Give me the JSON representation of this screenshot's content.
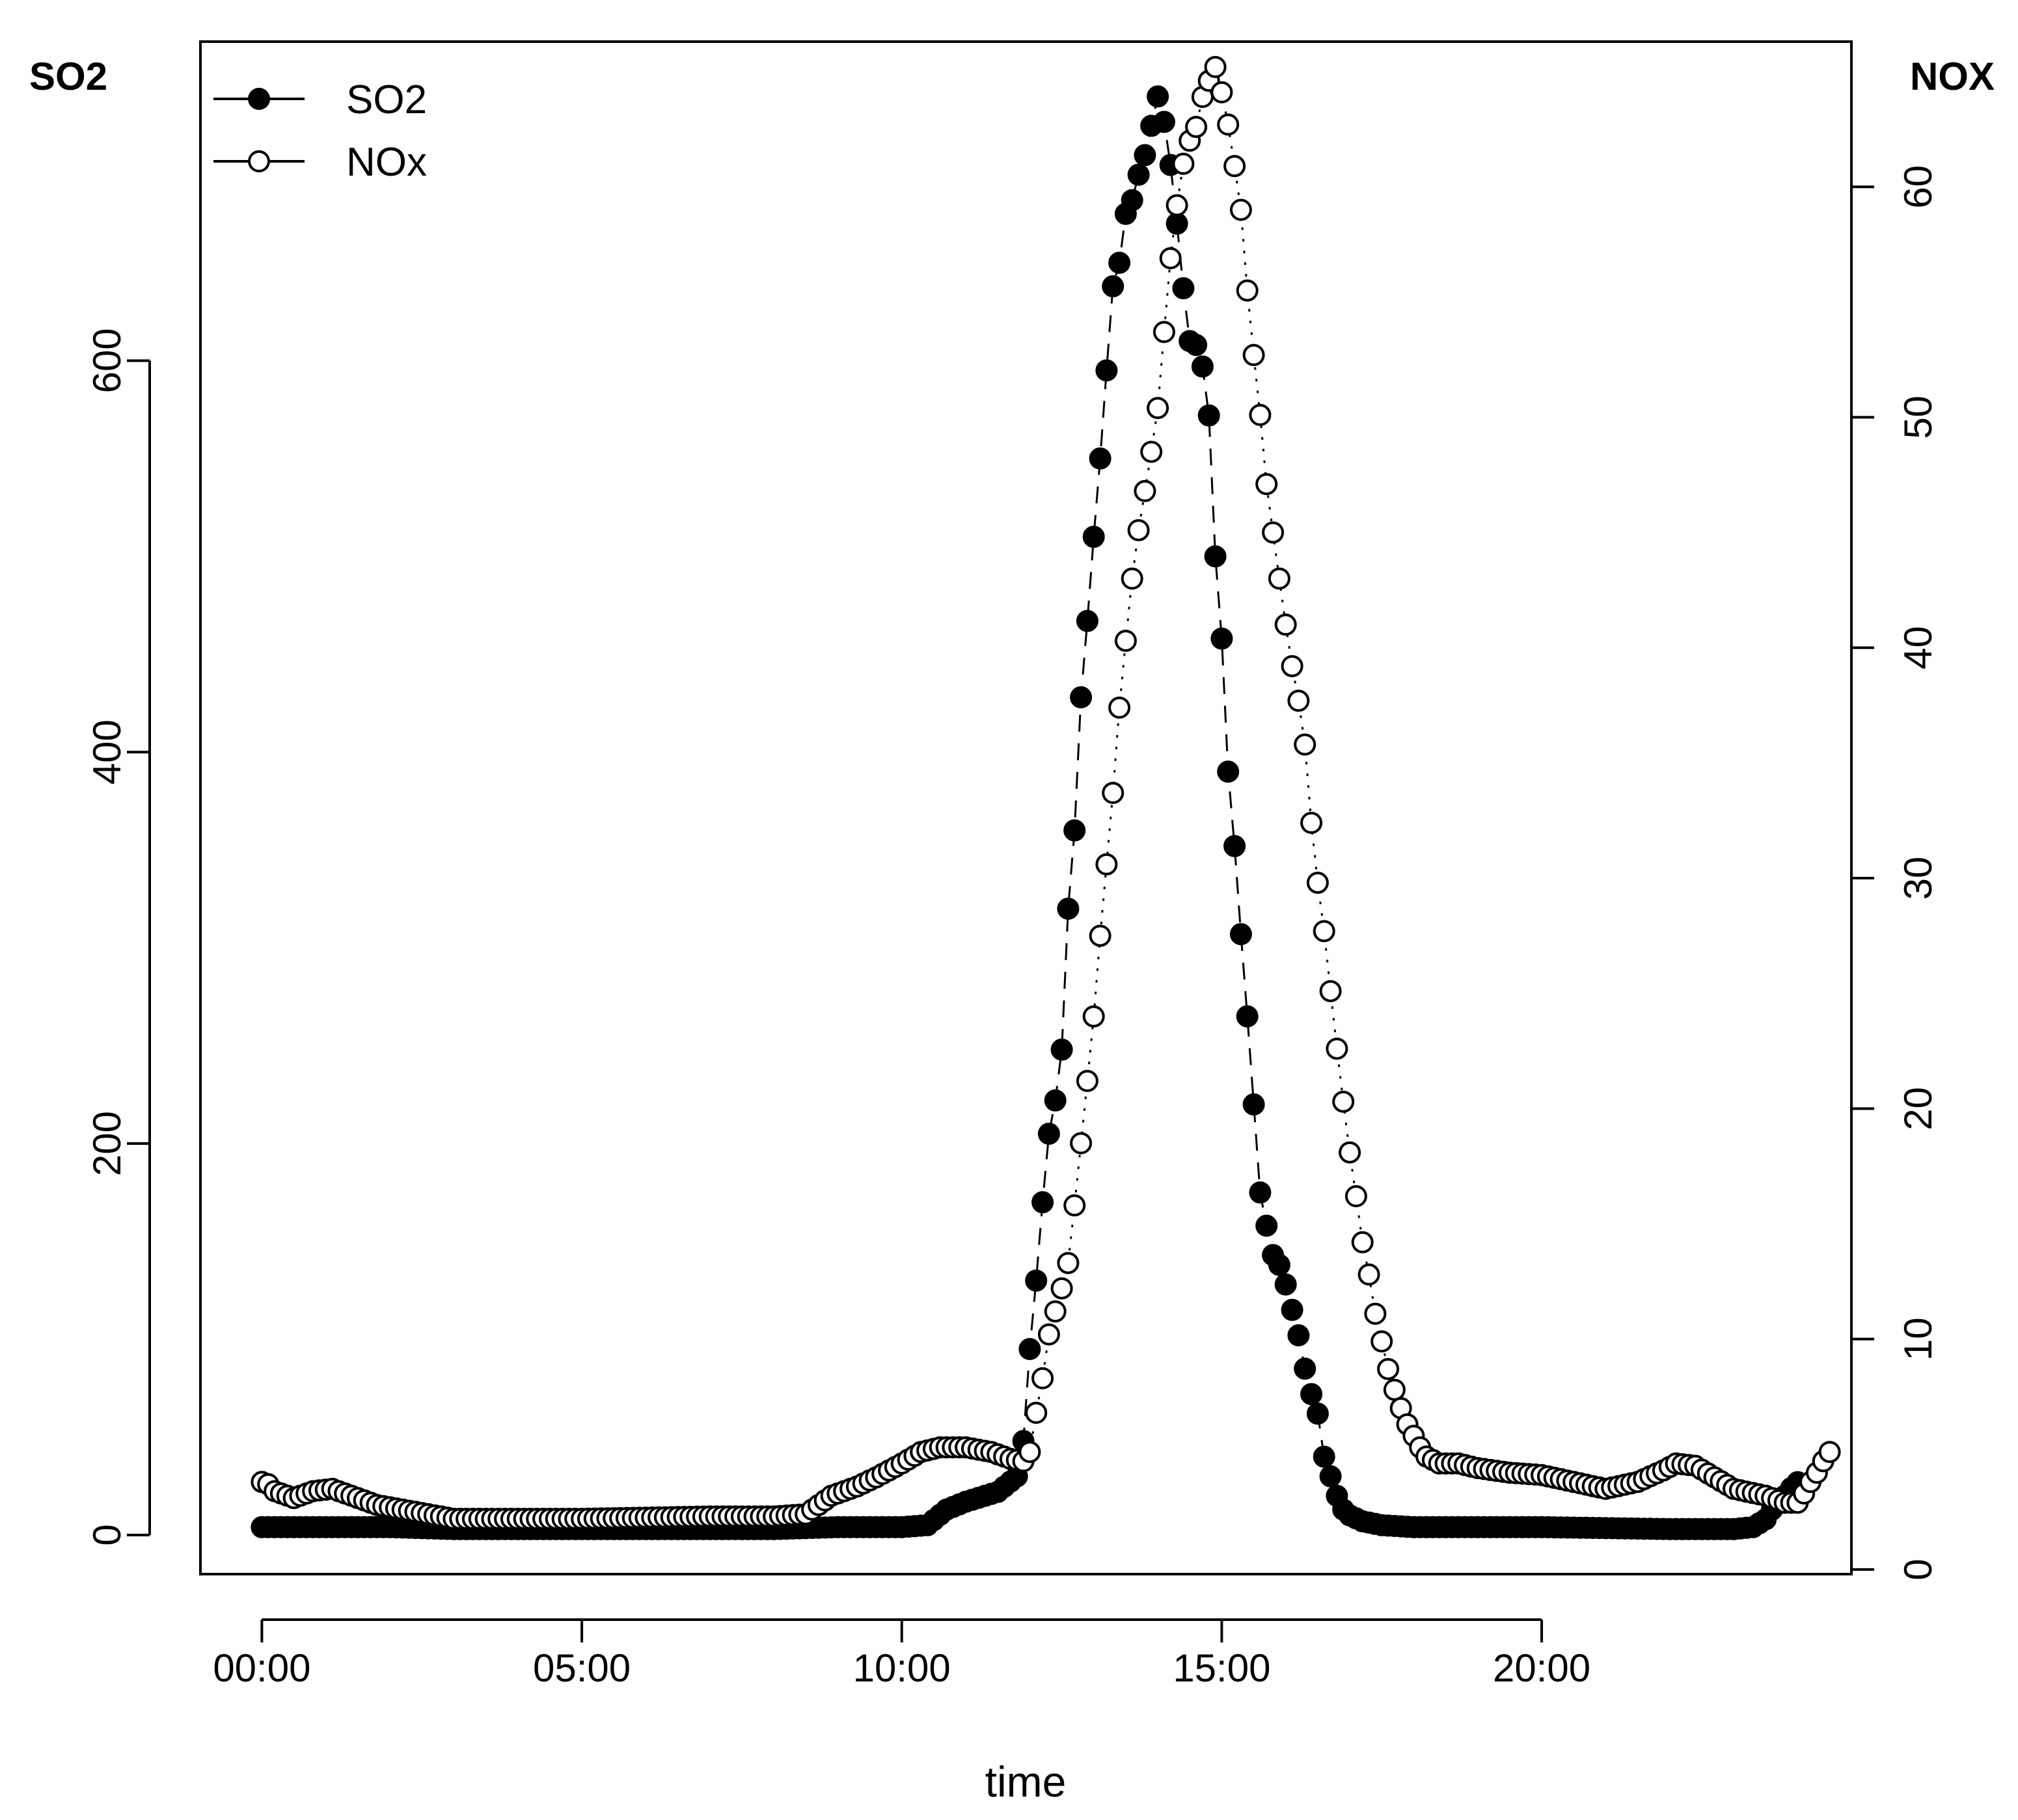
{
  "chart_data": {
    "type": "line",
    "xlabel": "time",
    "ylabel_left": "SO2",
    "ylabel_right": "NOX",
    "x_ticks": [
      "00:00",
      "05:00",
      "10:00",
      "15:00",
      "20:00"
    ],
    "x_tick_hours": [
      0,
      5,
      10,
      15,
      20
    ],
    "xlim_hours": [
      -0.96,
      24.84
    ],
    "ylim_left": [
      -20,
      763
    ],
    "yticks_left": [
      0,
      200,
      400,
      600
    ],
    "ylim_right": [
      -0.2,
      66.3
    ],
    "yticks_right": [
      0,
      10,
      20,
      30,
      40,
      50,
      60
    ],
    "legend": {
      "position": "top-left",
      "entries": [
        "SO2",
        "NOx"
      ]
    },
    "grid": false,
    "marker_interval_hours": 0.1,
    "series": [
      {
        "name": "SO2",
        "axis": "left",
        "marker": "filled-circle",
        "line": "dashed",
        "points": [
          [
            0,
            4
          ],
          [
            1,
            4
          ],
          [
            2,
            4
          ],
          [
            3,
            3
          ],
          [
            4,
            3
          ],
          [
            5,
            3
          ],
          [
            6,
            3
          ],
          [
            7,
            3
          ],
          [
            8,
            3
          ],
          [
            9,
            4
          ],
          [
            10,
            4
          ],
          [
            10.4,
            5
          ],
          [
            10.7,
            13
          ],
          [
            11,
            17
          ],
          [
            11.5,
            22
          ],
          [
            11.8,
            30
          ],
          [
            11.9,
            48
          ],
          [
            12,
            95
          ],
          [
            12.1,
            130
          ],
          [
            12.2,
            170
          ],
          [
            12.3,
            205
          ],
          [
            12.4,
            222
          ],
          [
            12.5,
            248
          ],
          [
            12.6,
            320
          ],
          [
            12.7,
            360
          ],
          [
            12.8,
            428
          ],
          [
            12.9,
            467
          ],
          [
            13,
            510
          ],
          [
            13.1,
            550
          ],
          [
            13.2,
            595
          ],
          [
            13.3,
            638
          ],
          [
            13.4,
            650
          ],
          [
            13.5,
            675
          ],
          [
            13.6,
            682
          ],
          [
            13.7,
            695
          ],
          [
            13.8,
            705
          ],
          [
            13.9,
            720
          ],
          [
            14,
            735
          ],
          [
            14.1,
            722
          ],
          [
            14.2,
            700
          ],
          [
            14.3,
            670
          ],
          [
            14.4,
            637
          ],
          [
            14.5,
            610
          ],
          [
            14.6,
            608
          ],
          [
            14.7,
            597
          ],
          [
            14.8,
            572
          ],
          [
            14.9,
            500
          ],
          [
            15,
            458
          ],
          [
            15.1,
            390
          ],
          [
            15.2,
            352
          ],
          [
            15.3,
            307
          ],
          [
            15.4,
            265
          ],
          [
            15.5,
            220
          ],
          [
            15.6,
            175
          ],
          [
            15.7,
            158
          ],
          [
            15.8,
            143
          ],
          [
            15.9,
            138
          ],
          [
            16,
            128
          ],
          [
            16.1,
            115
          ],
          [
            16.2,
            102
          ],
          [
            16.3,
            85
          ],
          [
            16.4,
            72
          ],
          [
            16.5,
            62
          ],
          [
            16.6,
            40
          ],
          [
            16.7,
            30
          ],
          [
            16.8,
            20
          ],
          [
            16.9,
            13
          ],
          [
            17,
            10
          ],
          [
            17.2,
            7
          ],
          [
            17.5,
            5
          ],
          [
            18,
            4
          ],
          [
            20,
            4
          ],
          [
            22,
            3
          ],
          [
            23,
            3
          ],
          [
            23.3,
            4
          ],
          [
            23.5,
            8
          ],
          [
            23.6,
            13
          ],
          [
            23.7,
            17
          ],
          [
            23.8,
            20
          ],
          [
            23.9,
            24
          ],
          [
            24,
            27
          ]
        ]
      },
      {
        "name": "NOx",
        "axis": "right",
        "marker": "open-circle",
        "line": "dotted",
        "points": [
          [
            0,
            3.8
          ],
          [
            0.1,
            3.7
          ],
          [
            0.2,
            3.4
          ],
          [
            0.5,
            3.1
          ],
          [
            0.8,
            3.4
          ],
          [
            1.1,
            3.5
          ],
          [
            1.5,
            3.1
          ],
          [
            1.8,
            2.8
          ],
          [
            2.2,
            2.6
          ],
          [
            2.6,
            2.4
          ],
          [
            3,
            2.2
          ],
          [
            5,
            2.2
          ],
          [
            7,
            2.3
          ],
          [
            8,
            2.3
          ],
          [
            8.5,
            2.4
          ],
          [
            8.9,
            3.2
          ],
          [
            9.3,
            3.6
          ],
          [
            9.6,
            4.0
          ],
          [
            10,
            4.6
          ],
          [
            10.3,
            5.1
          ],
          [
            10.6,
            5.3
          ],
          [
            11,
            5.3
          ],
          [
            11.4,
            5.1
          ],
          [
            11.7,
            4.8
          ],
          [
            11.9,
            4.7
          ],
          [
            12.0,
            5.1
          ],
          [
            12.1,
            6.8
          ],
          [
            12.2,
            8.3
          ],
          [
            12.3,
            10.2
          ],
          [
            12.4,
            11.2
          ],
          [
            12.5,
            12.2
          ],
          [
            12.6,
            13.3
          ],
          [
            12.7,
            15.8
          ],
          [
            12.8,
            18.5
          ],
          [
            12.9,
            21.2
          ],
          [
            13,
            24.0
          ],
          [
            13.1,
            27.5
          ],
          [
            13.2,
            30.6
          ],
          [
            13.3,
            33.7
          ],
          [
            13.4,
            37.4
          ],
          [
            13.5,
            40.3
          ],
          [
            13.6,
            43.0
          ],
          [
            13.7,
            45.1
          ],
          [
            13.8,
            46.8
          ],
          [
            13.9,
            48.5
          ],
          [
            14,
            50.4
          ],
          [
            14.1,
            53.7
          ],
          [
            14.2,
            56.9
          ],
          [
            14.3,
            59.2
          ],
          [
            14.4,
            61.0
          ],
          [
            14.5,
            62.0
          ],
          [
            14.6,
            62.6
          ],
          [
            14.7,
            63.9
          ],
          [
            14.8,
            64.6
          ],
          [
            14.9,
            65.2
          ],
          [
            15,
            64.1
          ],
          [
            15.1,
            62.7
          ],
          [
            15.2,
            60.9
          ],
          [
            15.3,
            59.0
          ],
          [
            15.4,
            55.5
          ],
          [
            15.5,
            52.7
          ],
          [
            15.6,
            50.1
          ],
          [
            15.7,
            47.1
          ],
          [
            15.8,
            45.0
          ],
          [
            15.9,
            43.0
          ],
          [
            16,
            41.0
          ],
          [
            16.1,
            39.2
          ],
          [
            16.2,
            37.7
          ],
          [
            16.3,
            35.8
          ],
          [
            16.4,
            32.4
          ],
          [
            16.5,
            29.8
          ],
          [
            16.6,
            27.7
          ],
          [
            16.7,
            25.1
          ],
          [
            16.8,
            22.6
          ],
          [
            16.9,
            20.3
          ],
          [
            17,
            18.1
          ],
          [
            17.1,
            16.2
          ],
          [
            17.2,
            14.2
          ],
          [
            17.3,
            12.8
          ],
          [
            17.4,
            11.1
          ],
          [
            17.5,
            9.9
          ],
          [
            17.6,
            8.7
          ],
          [
            17.7,
            7.8
          ],
          [
            17.8,
            7.0
          ],
          [
            17.9,
            6.3
          ],
          [
            18,
            5.8
          ],
          [
            18.1,
            5.3
          ],
          [
            18.2,
            4.9
          ],
          [
            18.4,
            4.6
          ],
          [
            18.7,
            4.6
          ],
          [
            19,
            4.4
          ],
          [
            19.5,
            4.2
          ],
          [
            20,
            4.1
          ],
          [
            20.5,
            3.8
          ],
          [
            21,
            3.5
          ],
          [
            21.5,
            3.8
          ],
          [
            21.9,
            4.3
          ],
          [
            22.1,
            4.6
          ],
          [
            22.4,
            4.5
          ],
          [
            22.7,
            4.0
          ],
          [
            23,
            3.5
          ],
          [
            23.5,
            3.2
          ],
          [
            23.8,
            2.9
          ],
          [
            24,
            2.9
          ],
          [
            24.1,
            3.3
          ],
          [
            24.2,
            3.8
          ],
          [
            24.3,
            4.2
          ],
          [
            24.4,
            4.7
          ],
          [
            24.5,
            5.1
          ]
        ]
      }
    ]
  }
}
